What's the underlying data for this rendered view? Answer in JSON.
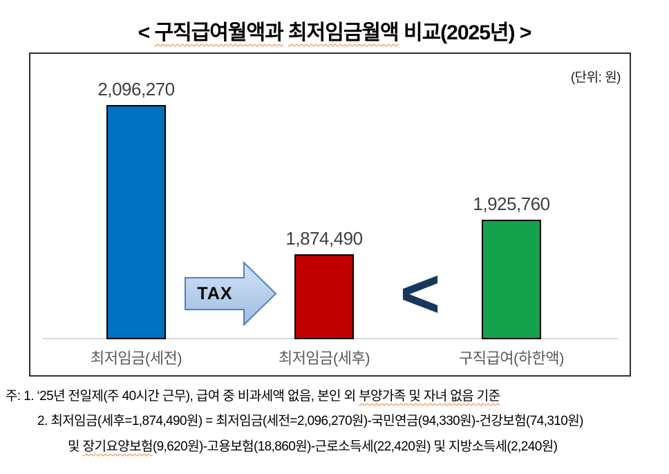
{
  "title": {
    "open": "<",
    "seg1": "구직급여월액과",
    "seg2": "최저임금월액",
    "seg3": "비교(2025년)",
    "close": ">"
  },
  "chart": {
    "unit_label": "(단위: 원)"
  },
  "chart_data": {
    "type": "bar",
    "title": "구직급여월액과 최저임금월액 비교(2025년)",
    "unit": "원",
    "categories": [
      "최저임금(세전)",
      "최저임금(세후)",
      "구직급여(하한액)"
    ],
    "values": [
      2096270,
      1874490,
      1925760
    ],
    "value_labels": [
      "2,096,270",
      "1,874,490",
      "1,925,760"
    ],
    "bar_colors": [
      "#0070c0",
      "#c00000",
      "#15a24c"
    ],
    "ylim": [
      1748000,
      2150000
    ],
    "grid": false,
    "legend": false,
    "annotations": [
      {
        "text": "TAX",
        "type": "arrow",
        "between": [
          "최저임금(세전)",
          "최저임금(세후)"
        ]
      },
      {
        "text": "<",
        "type": "comparison",
        "between": [
          "최저임금(세후)",
          "구직급여(하한액)"
        ]
      }
    ]
  },
  "notes": {
    "line1_pre": "주: 1. ‘25년 전일제(주 40시간 근무), 급여 중 비과세액 없음, 본인 외 ",
    "line1_underlined": "부양가족 및 자녀 없음 기준",
    "line2": "2. 최저임금(세후=1,874,490원) = 최저임금(세전=2,096,270원)-국민연금(94,330원)-건강보험(74,310원)",
    "line3_pre": "및 ",
    "line3_underlined": "장기요양보험",
    "line3_post": "(9,620원)-고용보험(18,860원)-근로소득세(22,420원) 및 지방소득세(2,240원)"
  },
  "colors": {
    "bar_blue": "#0070c0",
    "bar_red": "#c00000",
    "bar_green": "#15a24c",
    "arrow_fill_top": "#d3e1f4",
    "arrow_fill_bottom": "#9dbde2",
    "arrow_border": "#4f81bd",
    "less_than_symbol": "#17375e",
    "spellcheck_underline": "#ed7d31",
    "value_label": "#3f3f3f",
    "category_label": "#595959",
    "axis_line": "#d9d9d9",
    "frame_border": "#2f2f2f"
  }
}
